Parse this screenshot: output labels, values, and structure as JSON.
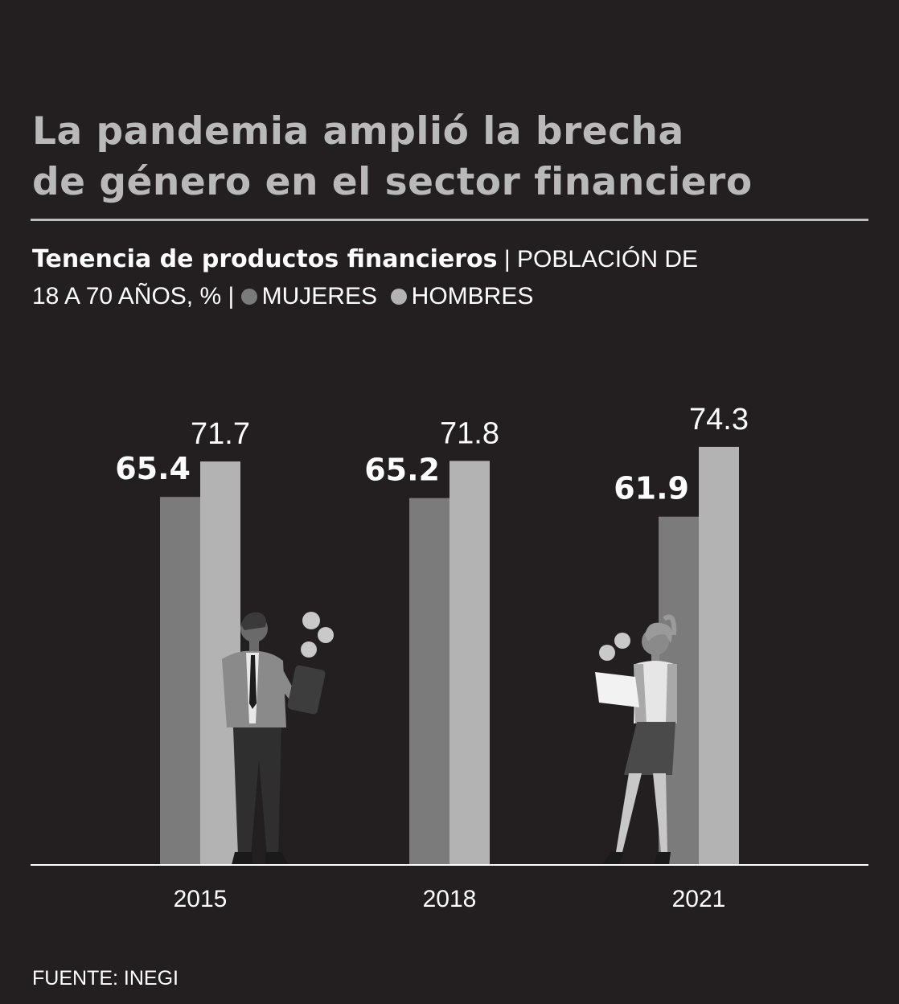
{
  "title_line1": "La pandemia amplió la brecha",
  "title_line2": "de género en el sector financiero",
  "subtitle": {
    "bold": "Tenencia de productos financieros",
    "sep1": " | ",
    "rest_line1": "POBLACIÓN DE",
    "rest_line2": "18 A 70 AÑOS, %",
    "sep2": " | "
  },
  "source": "FUENTE: INEGI",
  "colors": {
    "background": "#231f20",
    "mujeres": "#7b7b7b",
    "hombres": "#b3b3b3"
  },
  "chart_data": {
    "type": "bar",
    "title": "Tenencia de productos financieros",
    "ylabel": "%",
    "categories": [
      "2015",
      "2018",
      "2021"
    ],
    "series": [
      {
        "name": "MUJERES",
        "values": [
          65.4,
          65.2,
          61.9
        ],
        "labels": [
          "65.4",
          "65.2",
          "61.9"
        ]
      },
      {
        "name": "HOMBRES",
        "values": [
          71.7,
          71.8,
          74.3
        ],
        "labels": [
          "71.7",
          "71.8",
          "74.3"
        ]
      }
    ],
    "ylim": [
      0,
      100
    ],
    "legend": "top-left"
  }
}
